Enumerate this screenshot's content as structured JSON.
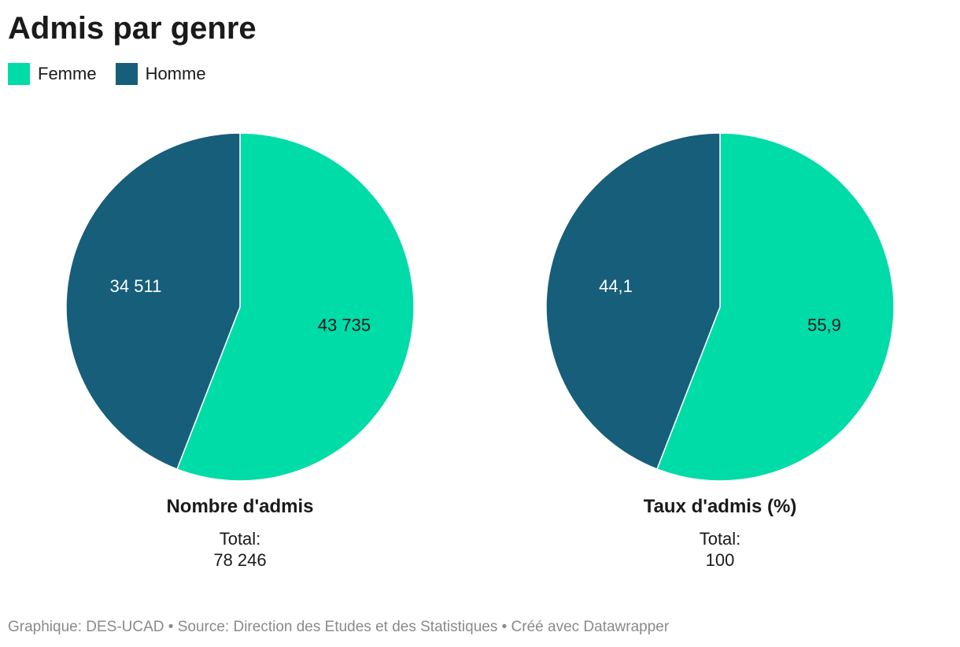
{
  "title": "Admis par genre",
  "legend": [
    {
      "label": "Femme",
      "color": "#00dca8"
    },
    {
      "label": "Homme",
      "color": "#175e7a"
    }
  ],
  "chart_data": [
    {
      "type": "pie",
      "title": "Nombre d'admis",
      "total_label": "Total:",
      "total_value": "78 246",
      "categories": [
        "Femme",
        "Homme"
      ],
      "values": [
        43735,
        34511
      ],
      "value_labels": [
        "43 735",
        "34 511"
      ],
      "colors": [
        "#00dca8",
        "#175e7a"
      ],
      "label_colors": [
        "#1a1a1a",
        "#ffffff"
      ]
    },
    {
      "type": "pie",
      "title": "Taux d'admis (%)",
      "total_label": "Total:",
      "total_value": "100",
      "categories": [
        "Femme",
        "Homme"
      ],
      "values": [
        55.9,
        44.1
      ],
      "value_labels": [
        "55,9",
        "44,1"
      ],
      "colors": [
        "#00dca8",
        "#175e7a"
      ],
      "label_colors": [
        "#1a1a1a",
        "#ffffff"
      ]
    }
  ],
  "footer": "Graphique: DES-UCAD • Source: Direction des Etudes et des Statistiques • Créé avec Datawrapper"
}
